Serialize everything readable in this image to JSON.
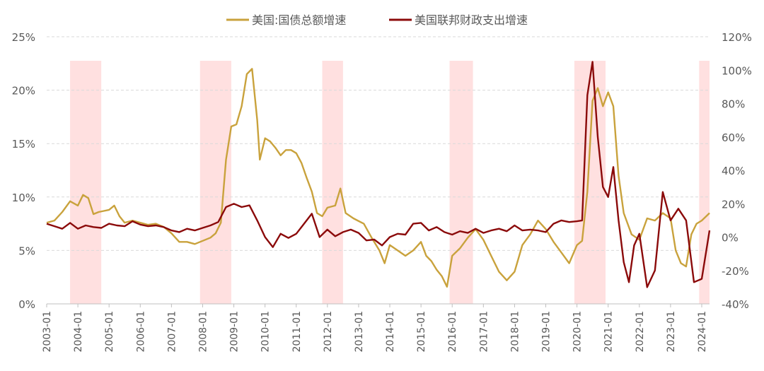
{
  "chart_data": {
    "type": "line",
    "colors": {
      "series_debt": "#C9A23C",
      "series_spend": "#8B0A0A",
      "shade": "#FFE0E0",
      "grid": "#D9D9D9",
      "text": "#595959"
    },
    "legend_position": "top-center",
    "grid": true,
    "left_axis": {
      "ylim": [
        0,
        25
      ],
      "ticks": [
        0,
        5,
        10,
        15,
        20,
        25
      ],
      "tick_labels": [
        "0%",
        "5%",
        "10%",
        "15%",
        "20%",
        "25%"
      ]
    },
    "right_axis": {
      "ylim": [
        -40,
        120
      ],
      "ticks": [
        -40,
        -20,
        0,
        20,
        40,
        60,
        80,
        100,
        120
      ],
      "tick_labels": [
        "-40%",
        "-20%",
        "0%",
        "20%",
        "40%",
        "60%",
        "80%",
        "100%",
        "120%"
      ]
    },
    "x_axis": {
      "range": [
        "2003-01",
        "2024-04"
      ],
      "tick_labels": [
        "2003-01",
        "2004-01",
        "2005-01",
        "2006-01",
        "2007-01",
        "2008-01",
        "2009-01",
        "2010-01",
        "2011-01",
        "2012-01",
        "2013-01",
        "2014-01",
        "2015-01",
        "2016-01",
        "2017-01",
        "2018-01",
        "2019-01",
        "2020-01",
        "2021-01",
        "2022-01",
        "2023-01",
        "2024-01"
      ]
    },
    "shaded_periods": [
      [
        "2003-10",
        "2004-10"
      ],
      [
        "2007-12",
        "2008-12"
      ],
      [
        "2011-11",
        "2012-07"
      ],
      [
        "2015-12",
        "2016-09"
      ],
      [
        "2019-12",
        "2020-12"
      ],
      [
        "2023-12",
        "2024-04"
      ]
    ],
    "series": [
      {
        "name": "美国:国债总额增速",
        "axis": "left",
        "points": [
          [
            "2003-01",
            7.6
          ],
          [
            "2003-04",
            7.8
          ],
          [
            "2003-07",
            8.6
          ],
          [
            "2003-10",
            9.6
          ],
          [
            "2004-01",
            9.2
          ],
          [
            "2004-03",
            10.2
          ],
          [
            "2004-05",
            9.9
          ],
          [
            "2004-07",
            8.4
          ],
          [
            "2004-09",
            8.6
          ],
          [
            "2004-11",
            8.7
          ],
          [
            "2005-01",
            8.8
          ],
          [
            "2005-03",
            9.2
          ],
          [
            "2005-05",
            8.2
          ],
          [
            "2005-07",
            7.6
          ],
          [
            "2005-10",
            7.8
          ],
          [
            "2006-01",
            7.6
          ],
          [
            "2006-04",
            7.4
          ],
          [
            "2006-07",
            7.5
          ],
          [
            "2006-10",
            7.2
          ],
          [
            "2007-01",
            6.6
          ],
          [
            "2007-04",
            5.8
          ],
          [
            "2007-07",
            5.8
          ],
          [
            "2007-10",
            5.6
          ],
          [
            "2008-01",
            5.9
          ],
          [
            "2008-04",
            6.2
          ],
          [
            "2008-06",
            6.6
          ],
          [
            "2008-08",
            7.6
          ],
          [
            "2008-10",
            13.5
          ],
          [
            "2008-12",
            16.6
          ],
          [
            "2009-02",
            16.8
          ],
          [
            "2009-04",
            18.5
          ],
          [
            "2009-06",
            21.5
          ],
          [
            "2009-08",
            22.0
          ],
          [
            "2009-10",
            17.2
          ],
          [
            "2009-11",
            13.5
          ],
          [
            "2010-01",
            15.5
          ],
          [
            "2010-03",
            15.2
          ],
          [
            "2010-05",
            14.6
          ],
          [
            "2010-07",
            13.9
          ],
          [
            "2010-09",
            14.4
          ],
          [
            "2010-11",
            14.4
          ],
          [
            "2011-01",
            14.1
          ],
          [
            "2011-03",
            13.2
          ],
          [
            "2011-05",
            11.8
          ],
          [
            "2011-07",
            10.5
          ],
          [
            "2011-09",
            8.5
          ],
          [
            "2011-11",
            8.2
          ],
          [
            "2012-01",
            9.0
          ],
          [
            "2012-04",
            9.2
          ],
          [
            "2012-06",
            10.8
          ],
          [
            "2012-08",
            8.5
          ],
          [
            "2012-11",
            8.0
          ],
          [
            "2013-03",
            7.5
          ],
          [
            "2013-06",
            6.2
          ],
          [
            "2013-09",
            5.0
          ],
          [
            "2013-11",
            3.8
          ],
          [
            "2014-01",
            5.5
          ],
          [
            "2014-04",
            5.0
          ],
          [
            "2014-07",
            4.5
          ],
          [
            "2014-10",
            5.0
          ],
          [
            "2015-01",
            5.8
          ],
          [
            "2015-03",
            4.5
          ],
          [
            "2015-05",
            4.0
          ],
          [
            "2015-07",
            3.2
          ],
          [
            "2015-09",
            2.6
          ],
          [
            "2015-11",
            1.6
          ],
          [
            "2016-01",
            4.5
          ],
          [
            "2016-04",
            5.2
          ],
          [
            "2016-07",
            6.2
          ],
          [
            "2016-10",
            7.0
          ],
          [
            "2017-01",
            6.0
          ],
          [
            "2017-04",
            4.5
          ],
          [
            "2017-07",
            3.0
          ],
          [
            "2017-10",
            2.2
          ],
          [
            "2018-01",
            3.0
          ],
          [
            "2018-04",
            5.5
          ],
          [
            "2018-07",
            6.5
          ],
          [
            "2018-10",
            7.8
          ],
          [
            "2019-01",
            7.0
          ],
          [
            "2019-04",
            5.8
          ],
          [
            "2019-07",
            4.8
          ],
          [
            "2019-10",
            3.8
          ],
          [
            "2020-01",
            5.5
          ],
          [
            "2020-03",
            5.9
          ],
          [
            "2020-05",
            10.5
          ],
          [
            "2020-07",
            19.0
          ],
          [
            "2020-09",
            20.2
          ],
          [
            "2020-11",
            18.5
          ],
          [
            "2021-01",
            19.8
          ],
          [
            "2021-03",
            18.5
          ],
          [
            "2021-05",
            12.0
          ],
          [
            "2021-07",
            8.5
          ],
          [
            "2021-10",
            6.5
          ],
          [
            "2022-01",
            6.0
          ],
          [
            "2022-04",
            8.0
          ],
          [
            "2022-07",
            7.8
          ],
          [
            "2022-10",
            8.5
          ],
          [
            "2023-01",
            8.0
          ],
          [
            "2023-03",
            5.0
          ],
          [
            "2023-05",
            3.8
          ],
          [
            "2023-07",
            3.5
          ],
          [
            "2023-09",
            6.5
          ],
          [
            "2023-11",
            7.5
          ],
          [
            "2024-01",
            7.8
          ],
          [
            "2024-04",
            8.5
          ]
        ]
      },
      {
        "name": "美国联邦财政支出增速",
        "axis": "right",
        "points": [
          [
            "2003-01",
            8.0
          ],
          [
            "2003-04",
            6.5
          ],
          [
            "2003-07",
            5.0
          ],
          [
            "2003-10",
            8.5
          ],
          [
            "2004-01",
            5.0
          ],
          [
            "2004-04",
            7.0
          ],
          [
            "2004-07",
            6.0
          ],
          [
            "2004-10",
            5.5
          ],
          [
            "2005-01",
            8.0
          ],
          [
            "2005-04",
            7.0
          ],
          [
            "2005-07",
            6.5
          ],
          [
            "2005-10",
            9.5
          ],
          [
            "2006-01",
            7.5
          ],
          [
            "2006-04",
            6.5
          ],
          [
            "2006-07",
            7.0
          ],
          [
            "2006-10",
            6.0
          ],
          [
            "2007-01",
            4.0
          ],
          [
            "2007-04",
            3.0
          ],
          [
            "2007-07",
            5.0
          ],
          [
            "2007-10",
            4.0
          ],
          [
            "2008-01",
            5.5
          ],
          [
            "2008-04",
            7.0
          ],
          [
            "2008-07",
            9.0
          ],
          [
            "2008-10",
            18.0
          ],
          [
            "2009-01",
            20.0
          ],
          [
            "2009-04",
            18.0
          ],
          [
            "2009-07",
            19.0
          ],
          [
            "2009-10",
            10.0
          ],
          [
            "2010-01",
            0.0
          ],
          [
            "2010-04",
            -6.0
          ],
          [
            "2010-07",
            2.0
          ],
          [
            "2010-10",
            -0.5
          ],
          [
            "2011-01",
            2.0
          ],
          [
            "2011-04",
            8.0
          ],
          [
            "2011-07",
            14.0
          ],
          [
            "2011-10",
            0.0
          ],
          [
            "2012-01",
            4.5
          ],
          [
            "2012-04",
            0.5
          ],
          [
            "2012-07",
            3.0
          ],
          [
            "2012-10",
            4.5
          ],
          [
            "2013-01",
            2.5
          ],
          [
            "2013-04",
            -2.0
          ],
          [
            "2013-07",
            -1.5
          ],
          [
            "2013-10",
            -5.0
          ],
          [
            "2014-01",
            0.0
          ],
          [
            "2014-04",
            2.0
          ],
          [
            "2014-07",
            1.5
          ],
          [
            "2014-10",
            8.0
          ],
          [
            "2015-01",
            8.5
          ],
          [
            "2015-04",
            4.0
          ],
          [
            "2015-07",
            6.0
          ],
          [
            "2015-10",
            3.0
          ],
          [
            "2016-01",
            1.5
          ],
          [
            "2016-04",
            3.5
          ],
          [
            "2016-07",
            2.5
          ],
          [
            "2016-10",
            5.0
          ],
          [
            "2017-01",
            2.5
          ],
          [
            "2017-04",
            4.0
          ],
          [
            "2017-07",
            5.0
          ],
          [
            "2017-10",
            3.5
          ],
          [
            "2018-01",
            7.0
          ],
          [
            "2018-04",
            4.0
          ],
          [
            "2018-07",
            4.5
          ],
          [
            "2018-10",
            4.0
          ],
          [
            "2019-01",
            3.0
          ],
          [
            "2019-04",
            8.0
          ],
          [
            "2019-07",
            10.0
          ],
          [
            "2019-10",
            9.0
          ],
          [
            "2020-01",
            9.5
          ],
          [
            "2020-03",
            10.0
          ],
          [
            "2020-05",
            85.0
          ],
          [
            "2020-07",
            105.0
          ],
          [
            "2020-09",
            60.0
          ],
          [
            "2020-11",
            30.0
          ],
          [
            "2021-01",
            24.0
          ],
          [
            "2021-03",
            42.0
          ],
          [
            "2021-05",
            10.0
          ],
          [
            "2021-07",
            -15.0
          ],
          [
            "2021-09",
            -27.0
          ],
          [
            "2021-11",
            -5.0
          ],
          [
            "2022-01",
            2.0
          ],
          [
            "2022-04",
            -30.0
          ],
          [
            "2022-07",
            -20.0
          ],
          [
            "2022-10",
            27.0
          ],
          [
            "2023-01",
            10.0
          ],
          [
            "2023-04",
            17.0
          ],
          [
            "2023-07",
            10.0
          ],
          [
            "2023-10",
            -27.0
          ],
          [
            "2024-01",
            -25.0
          ],
          [
            "2024-04",
            4.0
          ]
        ]
      }
    ]
  }
}
